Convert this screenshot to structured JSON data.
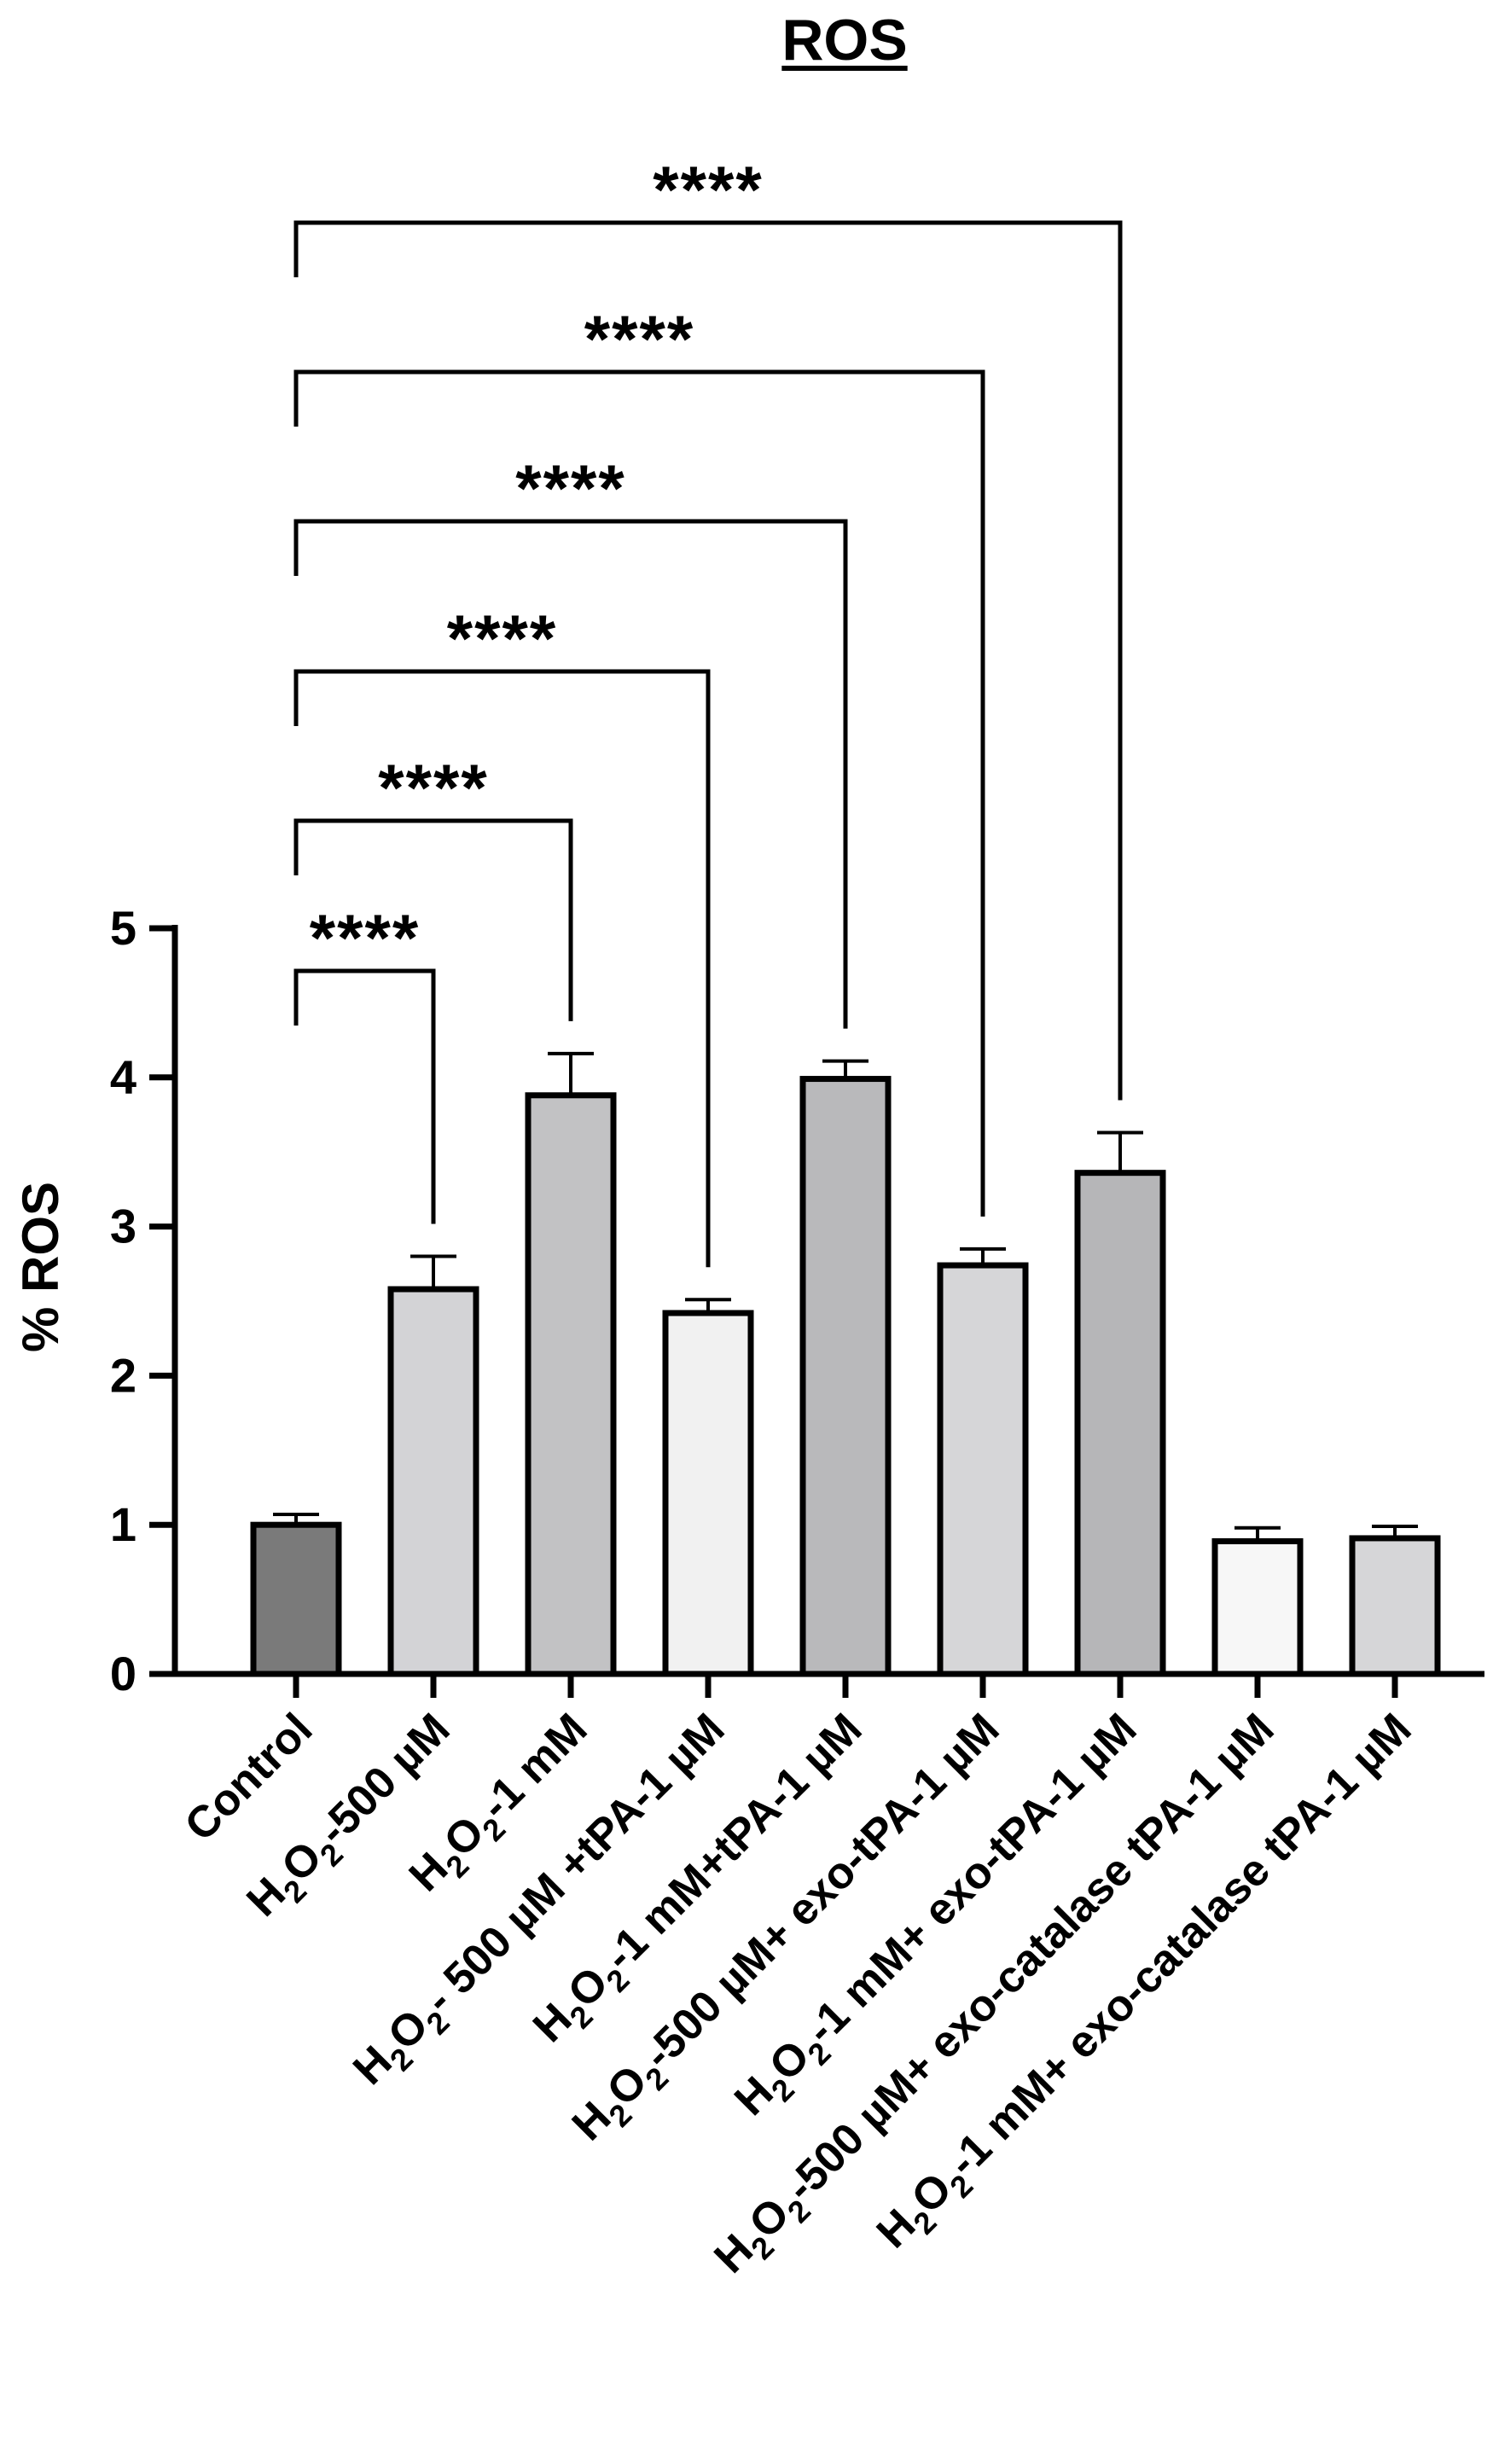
{
  "chart_data": {
    "type": "bar",
    "title": "ROS",
    "xlabel": "",
    "ylabel": "% ROS",
    "ylim": [
      0,
      5
    ],
    "yticks": [
      0,
      1,
      2,
      3,
      4,
      5
    ],
    "categories": [
      {
        "label": "Control",
        "parts": [
          [
            "Control",
            ""
          ]
        ]
      },
      {
        "label": "H2O2-500 µM",
        "parts": [
          [
            "H",
            ""
          ],
          [
            "2",
            "sub"
          ],
          [
            "O",
            ""
          ],
          [
            "2",
            "sub"
          ],
          [
            "-500 µM",
            ""
          ]
        ]
      },
      {
        "label": "H2O2-1 mM",
        "parts": [
          [
            "H",
            ""
          ],
          [
            "2",
            "sub"
          ],
          [
            "O",
            ""
          ],
          [
            "2",
            "sub"
          ],
          [
            "-1 mM",
            ""
          ]
        ]
      },
      {
        "label": "H2O2- 500 µM +tPA-1 µM",
        "parts": [
          [
            "H",
            ""
          ],
          [
            "2",
            "sub"
          ],
          [
            "O",
            ""
          ],
          [
            "2",
            "sub"
          ],
          [
            "- 500 µM +tPA-1 µM",
            ""
          ]
        ]
      },
      {
        "label": "H2O2-1 mM+tPA-1 µM",
        "parts": [
          [
            "H",
            ""
          ],
          [
            "2",
            "sub"
          ],
          [
            "O",
            ""
          ],
          [
            "2",
            "sub"
          ],
          [
            "-1 mM+tPA-1 µM",
            ""
          ]
        ]
      },
      {
        "label": "H2O2-500 µM+ exo-tPA-1 µM",
        "parts": [
          [
            "H",
            ""
          ],
          [
            "2",
            "sub"
          ],
          [
            "O",
            ""
          ],
          [
            "2",
            "sub"
          ],
          [
            "-500 µM+ exo-tPA-1 µM",
            ""
          ]
        ]
      },
      {
        "label": "H2O2-1 mM+ exo-tPA-1 µM",
        "parts": [
          [
            "H",
            ""
          ],
          [
            "2",
            "sub"
          ],
          [
            "O",
            ""
          ],
          [
            "2",
            "sub"
          ],
          [
            "-1 mM+ exo-tPA-1 µM",
            ""
          ]
        ]
      },
      {
        "label": "H2O2-500 µM+ exo-catalase tPA-1 µM",
        "parts": [
          [
            "H",
            ""
          ],
          [
            "2",
            "sub"
          ],
          [
            "O",
            ""
          ],
          [
            "2",
            "sub"
          ],
          [
            "-500 µM+ exo-catalase tPA-1 µM",
            ""
          ]
        ]
      },
      {
        "label": "H2O2-1 mM+ exo-catalase tPA-1 µM",
        "parts": [
          [
            "H",
            ""
          ],
          [
            "2",
            "sub"
          ],
          [
            "O",
            ""
          ],
          [
            "2",
            "sub"
          ],
          [
            "-1 mM+ exo-catalase tPA-1 µM",
            ""
          ]
        ]
      }
    ],
    "values": [
      1.0,
      2.58,
      3.88,
      2.42,
      3.99,
      2.74,
      3.36,
      0.89,
      0.91
    ],
    "errors": [
      0.07,
      0.22,
      0.28,
      0.09,
      0.12,
      0.11,
      0.27,
      0.09,
      0.08
    ],
    "bar_colors": [
      "#7a7a7a",
      "#d3d3d6",
      "#c2c2c4",
      "#f1f1f1",
      "#b9b9bb",
      "#d6d6d8",
      "#b6b6b8",
      "#f7f7f7",
      "#d6d6d8"
    ],
    "comparisons": [
      {
        "from": 0,
        "to": 1,
        "label": "****"
      },
      {
        "from": 0,
        "to": 2,
        "label": "****"
      },
      {
        "from": 0,
        "to": 3,
        "label": "****"
      },
      {
        "from": 0,
        "to": 4,
        "label": "****"
      },
      {
        "from": 0,
        "to": 5,
        "label": "****"
      },
      {
        "from": 0,
        "to": 6,
        "label": "****"
      }
    ]
  }
}
